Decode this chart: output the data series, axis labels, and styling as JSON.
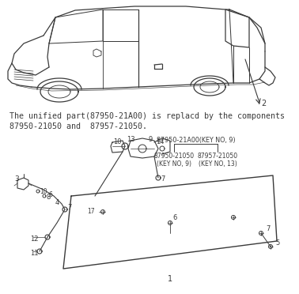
{
  "bg_color": "#ffffff",
  "text_line1": "The unified part(87950-21A00) is replacd by the components",
  "text_line2": "87950-21050 and  87957-21050.",
  "label_top": "87950-21A00(KEY NO, 9)",
  "label_left": "87950-21050\n(KEY NO, 9)",
  "label_right": "87957-21050\n(KEY NO, 13)",
  "text_color": "#3a3a3a",
  "line_color": "#3a3a3a",
  "fig_width": 3.78,
  "fig_height": 3.72,
  "dpi": 100
}
